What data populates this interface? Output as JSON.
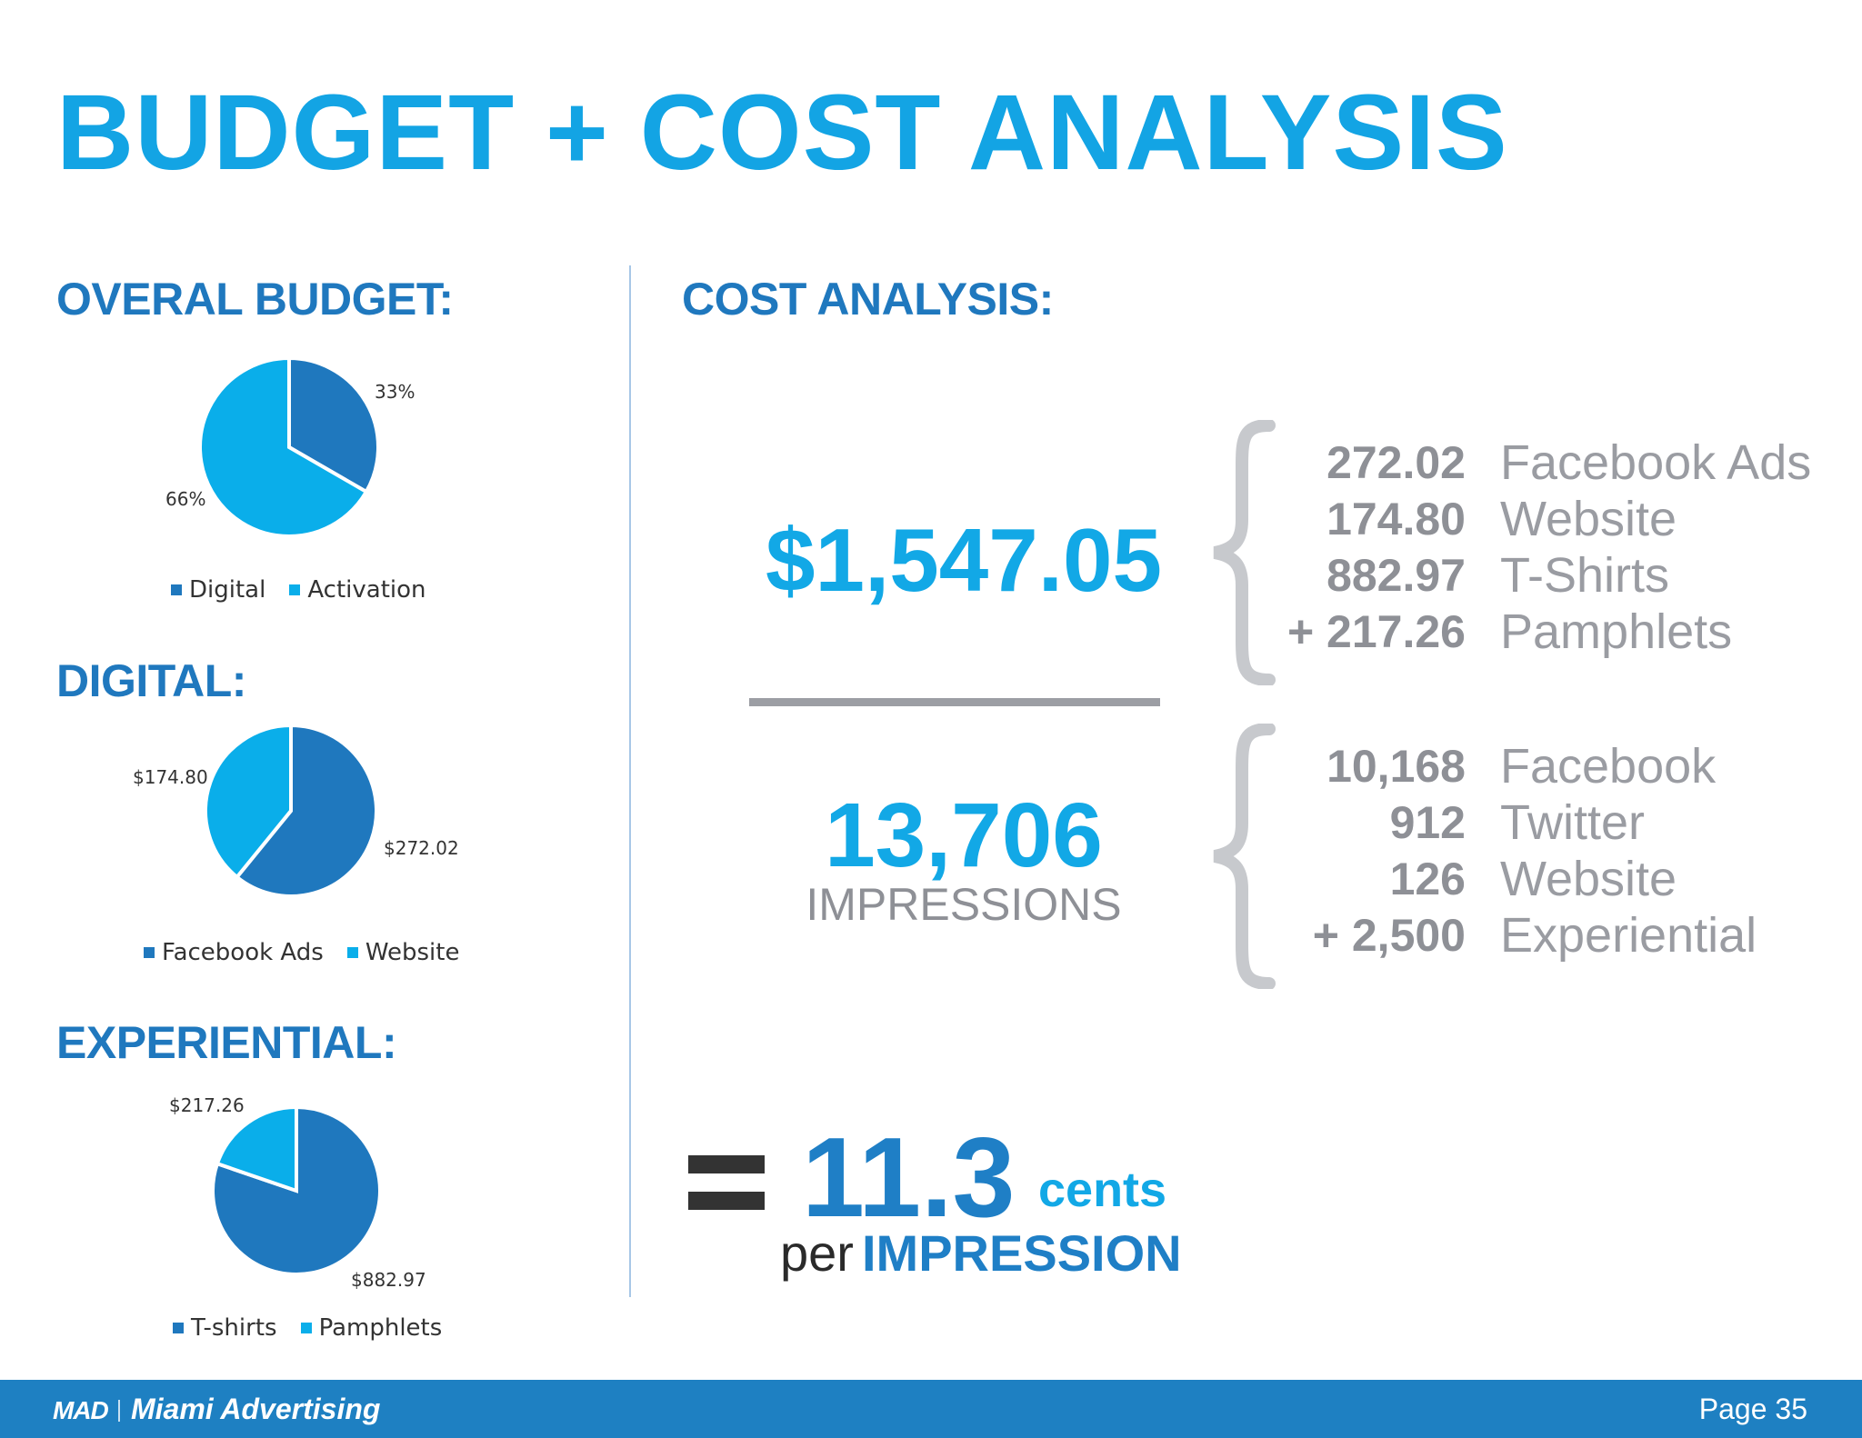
{
  "title": "BUDGET + COST ANALYSIS",
  "left_headings": {
    "overall": "OVERAL BUDGET:",
    "digital": "DIGITAL:",
    "experiential": "EXPERIENTIAL:"
  },
  "right_heading": "COST ANALYSIS:",
  "colors": {
    "dark": "#1f78be",
    "light": "#0aaeea",
    "accent": "#13a4e4",
    "gray": "#8e9096",
    "footer": "#1e80c2"
  },
  "chart_data": [
    {
      "type": "pie",
      "title": "OVERAL BUDGET:",
      "categories": [
        "Digital",
        "Activation"
      ],
      "values": [
        33,
        66
      ],
      "data_labels": [
        "33%",
        "66%"
      ],
      "legend": "bottom"
    },
    {
      "type": "pie",
      "title": "DIGITAL:",
      "categories": [
        "Facebook Ads",
        "Website"
      ],
      "values": [
        272.02,
        174.8
      ],
      "data_labels": [
        "$272.02",
        "$174.80"
      ],
      "legend": "bottom"
    },
    {
      "type": "pie",
      "title": "EXPERIENTIAL:",
      "categories": [
        "T-shirts",
        "Pamphlets"
      ],
      "values": [
        882.97,
        217.26
      ],
      "data_labels": [
        "$882.97",
        "$217.26"
      ],
      "legend": "bottom"
    }
  ],
  "cost": {
    "total": "$1,547.05",
    "cost_items": [
      {
        "value": "272.02",
        "label": "Facebook Ads"
      },
      {
        "value": "174.80",
        "label": "Website"
      },
      {
        "value": "882.97",
        "label": "T-Shirts"
      },
      {
        "value": "+ 217.26",
        "label": "Pamphlets"
      }
    ],
    "impressions_total": "13,706",
    "impressions_word": "IMPRESSIONS",
    "impression_items": [
      {
        "value": "10,168",
        "label": "Facebook"
      },
      {
        "value": "912",
        "label": "Twitter"
      },
      {
        "value": "126",
        "label": "Website"
      },
      {
        "value": "+ 2,500",
        "label": "Experiential"
      }
    ],
    "result_value": "11.3",
    "result_unit": "cents",
    "result_per": "per",
    "result_per_word": "IMPRESSION"
  },
  "footer": {
    "logo": "MAD",
    "brand": "Miami Advertising",
    "page": "Page 35"
  }
}
